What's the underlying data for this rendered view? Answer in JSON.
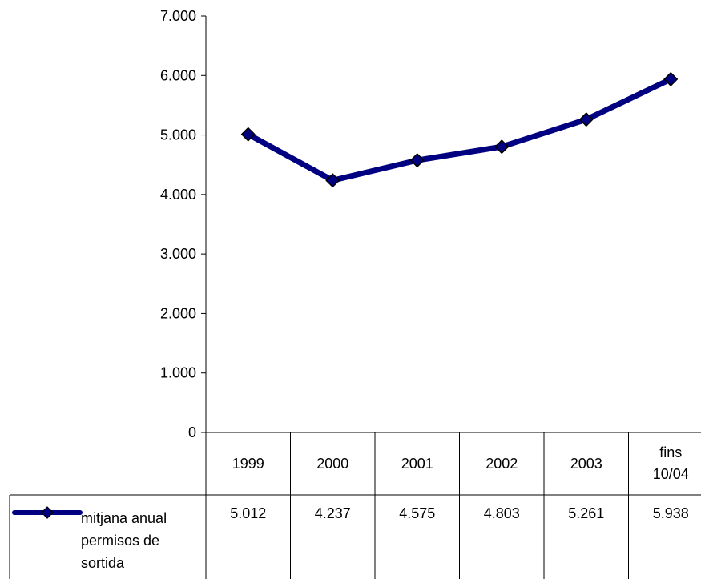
{
  "chart_data": {
    "type": "line",
    "categories": [
      "1999",
      "2000",
      "2001",
      "2002",
      "2003",
      [
        "fins",
        "10/04"
      ]
    ],
    "ylim": [
      0,
      7000
    ],
    "y_ticks": [
      "0",
      "1.000",
      "2.000",
      "3.000",
      "4.000",
      "5.000",
      "6.000",
      "7.000"
    ],
    "grid": false,
    "series": [
      {
        "name": [
          "mitjana anual",
          "permisos de",
          "sortida"
        ],
        "values": [
          5012,
          4237,
          4575,
          4803,
          5261,
          5938
        ],
        "value_labels": [
          "5.012",
          "4.237",
          "4.575",
          "4.803",
          "5.261",
          "5.938"
        ],
        "color": "#000080",
        "marker": "diamond"
      }
    ],
    "data_table": true
  }
}
